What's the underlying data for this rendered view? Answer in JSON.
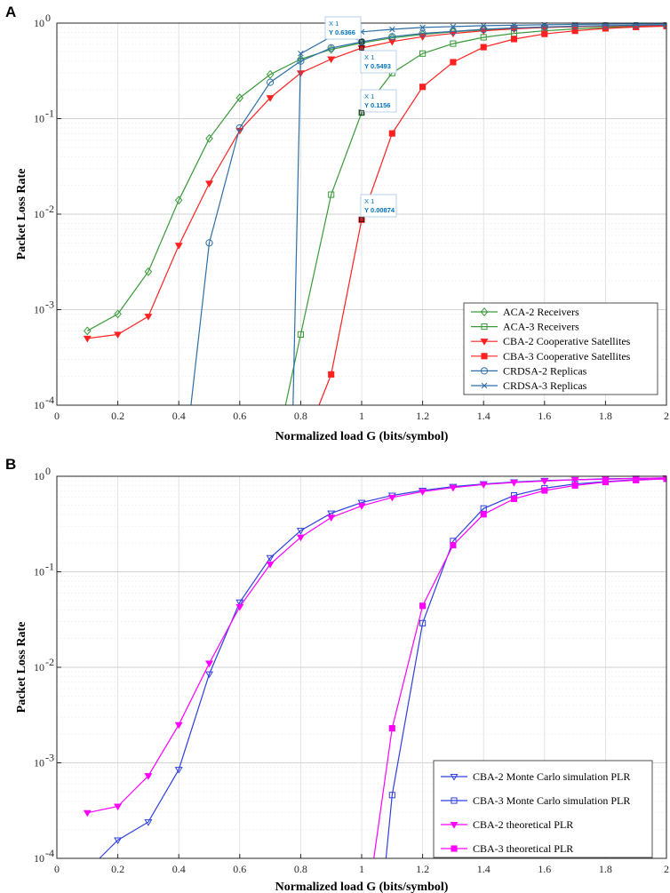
{
  "chart_data": [
    {
      "type": "line",
      "panel_label": "A",
      "xlabel": "Normalized load G (bits/symbol)",
      "ylabel": "Packet Loss Rate",
      "yscale": "log",
      "xlim": [
        0,
        2
      ],
      "ylim": [
        0.0001,
        1
      ],
      "grid": true,
      "legend_position": "bottom-right",
      "x_ticks": [
        "0",
        "0.2",
        "0.4",
        "0.6",
        "0.8",
        "1",
        "1.2",
        "1.4",
        "1.6",
        "1.8",
        "2"
      ],
      "y_ticks": [
        {
          "value": 0.0001,
          "base": "10",
          "exp": "-4"
        },
        {
          "value": 0.001,
          "base": "10",
          "exp": "-3"
        },
        {
          "value": 0.01,
          "base": "10",
          "exp": "-2"
        },
        {
          "value": 0.1,
          "base": "10",
          "exp": "-1"
        },
        {
          "value": 1,
          "base": "10",
          "exp": "0"
        }
      ],
      "series": [
        {
          "name": "ACA-2 Receivers",
          "color": "#3a9a3a",
          "marker": "diamond",
          "x": [
            0.1,
            0.2,
            0.3,
            0.4,
            0.5,
            0.6,
            0.7,
            0.8,
            0.9,
            1.0,
            1.1,
            1.2,
            1.3,
            1.4,
            1.5,
            1.6,
            1.7,
            1.8,
            1.9,
            2.0
          ],
          "y": [
            0.0006,
            0.0009,
            0.0025,
            0.014,
            0.062,
            0.165,
            0.29,
            0.42,
            0.53,
            0.62,
            0.7,
            0.76,
            0.81,
            0.85,
            0.88,
            0.9,
            0.92,
            0.93,
            0.94,
            0.95
          ]
        },
        {
          "name": "ACA-3 Receivers",
          "color": "#3a9a3a",
          "marker": "square",
          "x": [
            0.75,
            0.8,
            0.9,
            1.0,
            1.1,
            1.2,
            1.3,
            1.4,
            1.5,
            1.6,
            1.7,
            1.8,
            1.9,
            2.0
          ],
          "y": [
            0.0001,
            0.00055,
            0.016,
            0.1156,
            0.3,
            0.48,
            0.61,
            0.71,
            0.78,
            0.83,
            0.87,
            0.9,
            0.92,
            0.94
          ]
        },
        {
          "name": "CBA-2 Cooperative Satellites",
          "color": "#ff2020",
          "marker": "triangle-down",
          "x": [
            0.1,
            0.2,
            0.3,
            0.4,
            0.5,
            0.6,
            0.7,
            0.8,
            0.9,
            1.0,
            1.1,
            1.2,
            1.3,
            1.4,
            1.5,
            1.6,
            1.7,
            1.8,
            1.9,
            2.0
          ],
          "y": [
            0.0005,
            0.00055,
            0.00085,
            0.0047,
            0.021,
            0.075,
            0.165,
            0.3,
            0.42,
            0.5493,
            0.64,
            0.72,
            0.78,
            0.83,
            0.87,
            0.9,
            0.92,
            0.93,
            0.94,
            0.95
          ]
        },
        {
          "name": "CBA-3 Cooperative Satellites",
          "color": "#ff2020",
          "marker": "square",
          "x": [
            0.86,
            0.9,
            1.0,
            1.1,
            1.2,
            1.3,
            1.4,
            1.5,
            1.6,
            1.7,
            1.8,
            1.9,
            2.0
          ],
          "y": [
            0.0001,
            0.00021,
            0.00874,
            0.07,
            0.215,
            0.39,
            0.56,
            0.68,
            0.77,
            0.83,
            0.88,
            0.91,
            0.93
          ]
        },
        {
          "name": "CRDSA-2 Replicas",
          "color": "#2e6fa6",
          "marker": "circle",
          "x": [
            0.44,
            0.5,
            0.6,
            0.7,
            0.8,
            0.9,
            1.0,
            1.1,
            1.2,
            1.3,
            1.4,
            1.5,
            1.6,
            1.7,
            1.8,
            1.9,
            2.0
          ],
          "y": [
            0.0001,
            0.005,
            0.08,
            0.24,
            0.4,
            0.55,
            0.6366,
            0.72,
            0.78,
            0.82,
            0.86,
            0.89,
            0.91,
            0.93,
            0.94,
            0.95,
            0.96
          ]
        },
        {
          "name": "CRDSA-3 Replicas",
          "color": "#2e6fa6",
          "marker": "x",
          "x": [
            0.775,
            0.8,
            0.9,
            1.0,
            1.1,
            1.2,
            1.3,
            1.4,
            1.5,
            1.6,
            1.7,
            1.8,
            1.9,
            2.0
          ],
          "y": [
            0.0001,
            0.48,
            0.72,
            0.81,
            0.86,
            0.9,
            0.92,
            0.94,
            0.95,
            0.96,
            0.97,
            0.975,
            0.98,
            0.985
          ]
        }
      ],
      "datatips": [
        {
          "x": 1,
          "y": 0.6366,
          "line1": "X 1",
          "line2": "Y 0.6366"
        },
        {
          "x": 1,
          "y": 0.5493,
          "line1": "X 1",
          "line2": "Y 0.5493"
        },
        {
          "x": 1,
          "y": 0.1156,
          "line1": "X 1",
          "line2": "Y 0.1156"
        },
        {
          "x": 1,
          "y": 0.00874,
          "line1": "X 1",
          "line2": "Y 0.00874"
        }
      ]
    },
    {
      "type": "line",
      "panel_label": "B",
      "xlabel": "Normalized load G (bits/symbol)",
      "ylabel": "Packet Loss Rate",
      "yscale": "log",
      "xlim": [
        0,
        2
      ],
      "ylim": [
        0.0001,
        1
      ],
      "grid": true,
      "legend_position": "bottom-right",
      "x_ticks": [
        "0",
        "0.2",
        "0.4",
        "0.6",
        "0.8",
        "1",
        "1.2",
        "1.4",
        "1.6",
        "1.8",
        "2"
      ],
      "y_ticks": [
        {
          "value": 0.0001,
          "base": "10",
          "exp": "-4"
        },
        {
          "value": 0.001,
          "base": "10",
          "exp": "-3"
        },
        {
          "value": 0.01,
          "base": "10",
          "exp": "-2"
        },
        {
          "value": 0.1,
          "base": "10",
          "exp": "-1"
        },
        {
          "value": 1,
          "base": "10",
          "exp": "0"
        }
      ],
      "series": [
        {
          "name": "CBA-2 Monte Carlo simulation PLR",
          "color": "#2f3fe0",
          "marker": "triangle-down-open",
          "x": [
            0.14,
            0.2,
            0.3,
            0.4,
            0.5,
            0.6,
            0.7,
            0.8,
            0.9,
            1.0,
            1.1,
            1.2,
            1.3,
            1.4,
            1.5,
            1.6,
            1.7,
            1.8,
            1.9,
            2.0
          ],
          "y": [
            0.0001,
            0.000155,
            0.00024,
            0.00085,
            0.0085,
            0.048,
            0.14,
            0.27,
            0.41,
            0.53,
            0.63,
            0.71,
            0.78,
            0.83,
            0.87,
            0.9,
            0.92,
            0.94,
            0.95,
            0.96
          ]
        },
        {
          "name": "CBA-3 Monte Carlo simulation PLR",
          "color": "#2f3fe0",
          "marker": "square-open",
          "x": [
            1.08,
            1.1,
            1.2,
            1.3,
            1.4,
            1.5,
            1.6,
            1.7,
            1.8,
            1.9,
            2.0
          ],
          "y": [
            0.0001,
            0.00046,
            0.029,
            0.21,
            0.46,
            0.63,
            0.75,
            0.83,
            0.88,
            0.92,
            0.94
          ]
        },
        {
          "name": "CBA-2 theoretical PLR",
          "color": "#ff00ff",
          "marker": "triangle-down",
          "x": [
            0.1,
            0.2,
            0.3,
            0.4,
            0.5,
            0.6,
            0.7,
            0.8,
            0.9,
            1.0,
            1.1,
            1.2,
            1.3,
            1.4,
            1.5,
            1.6,
            1.7,
            1.8,
            1.9,
            2.0
          ],
          "y": [
            0.0003,
            0.00035,
            0.00073,
            0.0025,
            0.011,
            0.043,
            0.12,
            0.23,
            0.37,
            0.49,
            0.6,
            0.69,
            0.76,
            0.82,
            0.86,
            0.89,
            0.92,
            0.93,
            0.95,
            0.96
          ]
        },
        {
          "name": "CBA-3 theoretical PLR",
          "color": "#ff00ff",
          "marker": "square",
          "x": [
            1.04,
            1.1,
            1.2,
            1.3,
            1.4,
            1.5,
            1.6,
            1.7,
            1.8,
            1.9,
            2.0
          ],
          "y": [
            0.0001,
            0.0023,
            0.044,
            0.19,
            0.4,
            0.58,
            0.71,
            0.8,
            0.87,
            0.91,
            0.94
          ]
        }
      ]
    }
  ]
}
